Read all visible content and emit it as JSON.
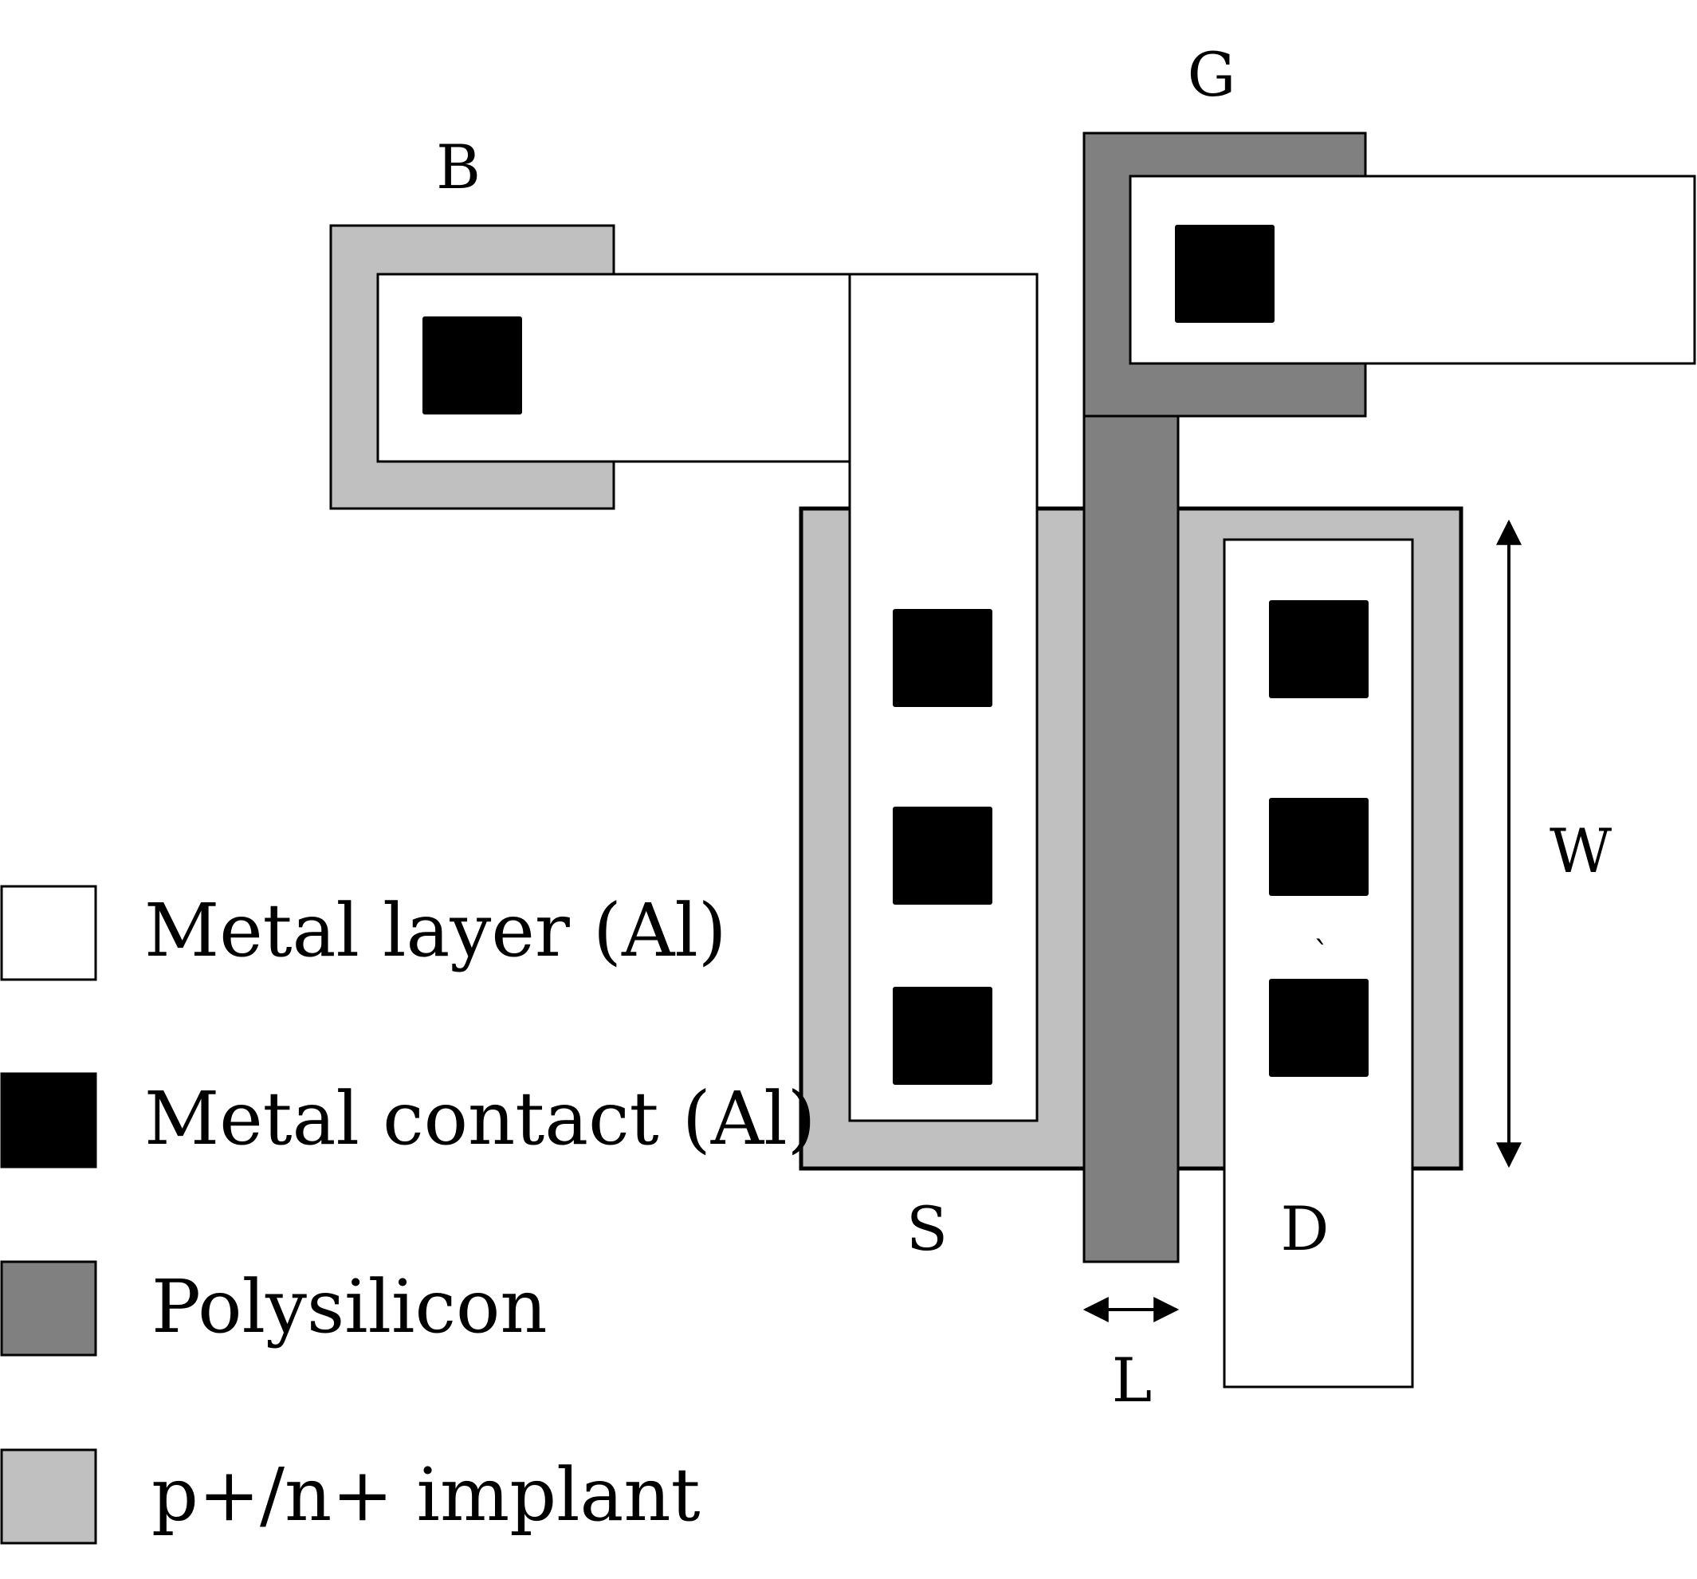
{
  "colors": {
    "metal": "#ffffff",
    "contact": "#000000",
    "poly": "#808080",
    "implant": "#c0c0c0",
    "stroke": "#000000"
  },
  "terminals": {
    "gate": "G",
    "bulk": "B",
    "source": "S",
    "drain": "D",
    "width": "W",
    "length": "L"
  },
  "legend": {
    "metal": "Metal  layer (Al)",
    "contact": "Metal contact (Al)",
    "poly": "Polysilicon",
    "implant": "p+/n+  implant"
  },
  "stray_mark": "`"
}
